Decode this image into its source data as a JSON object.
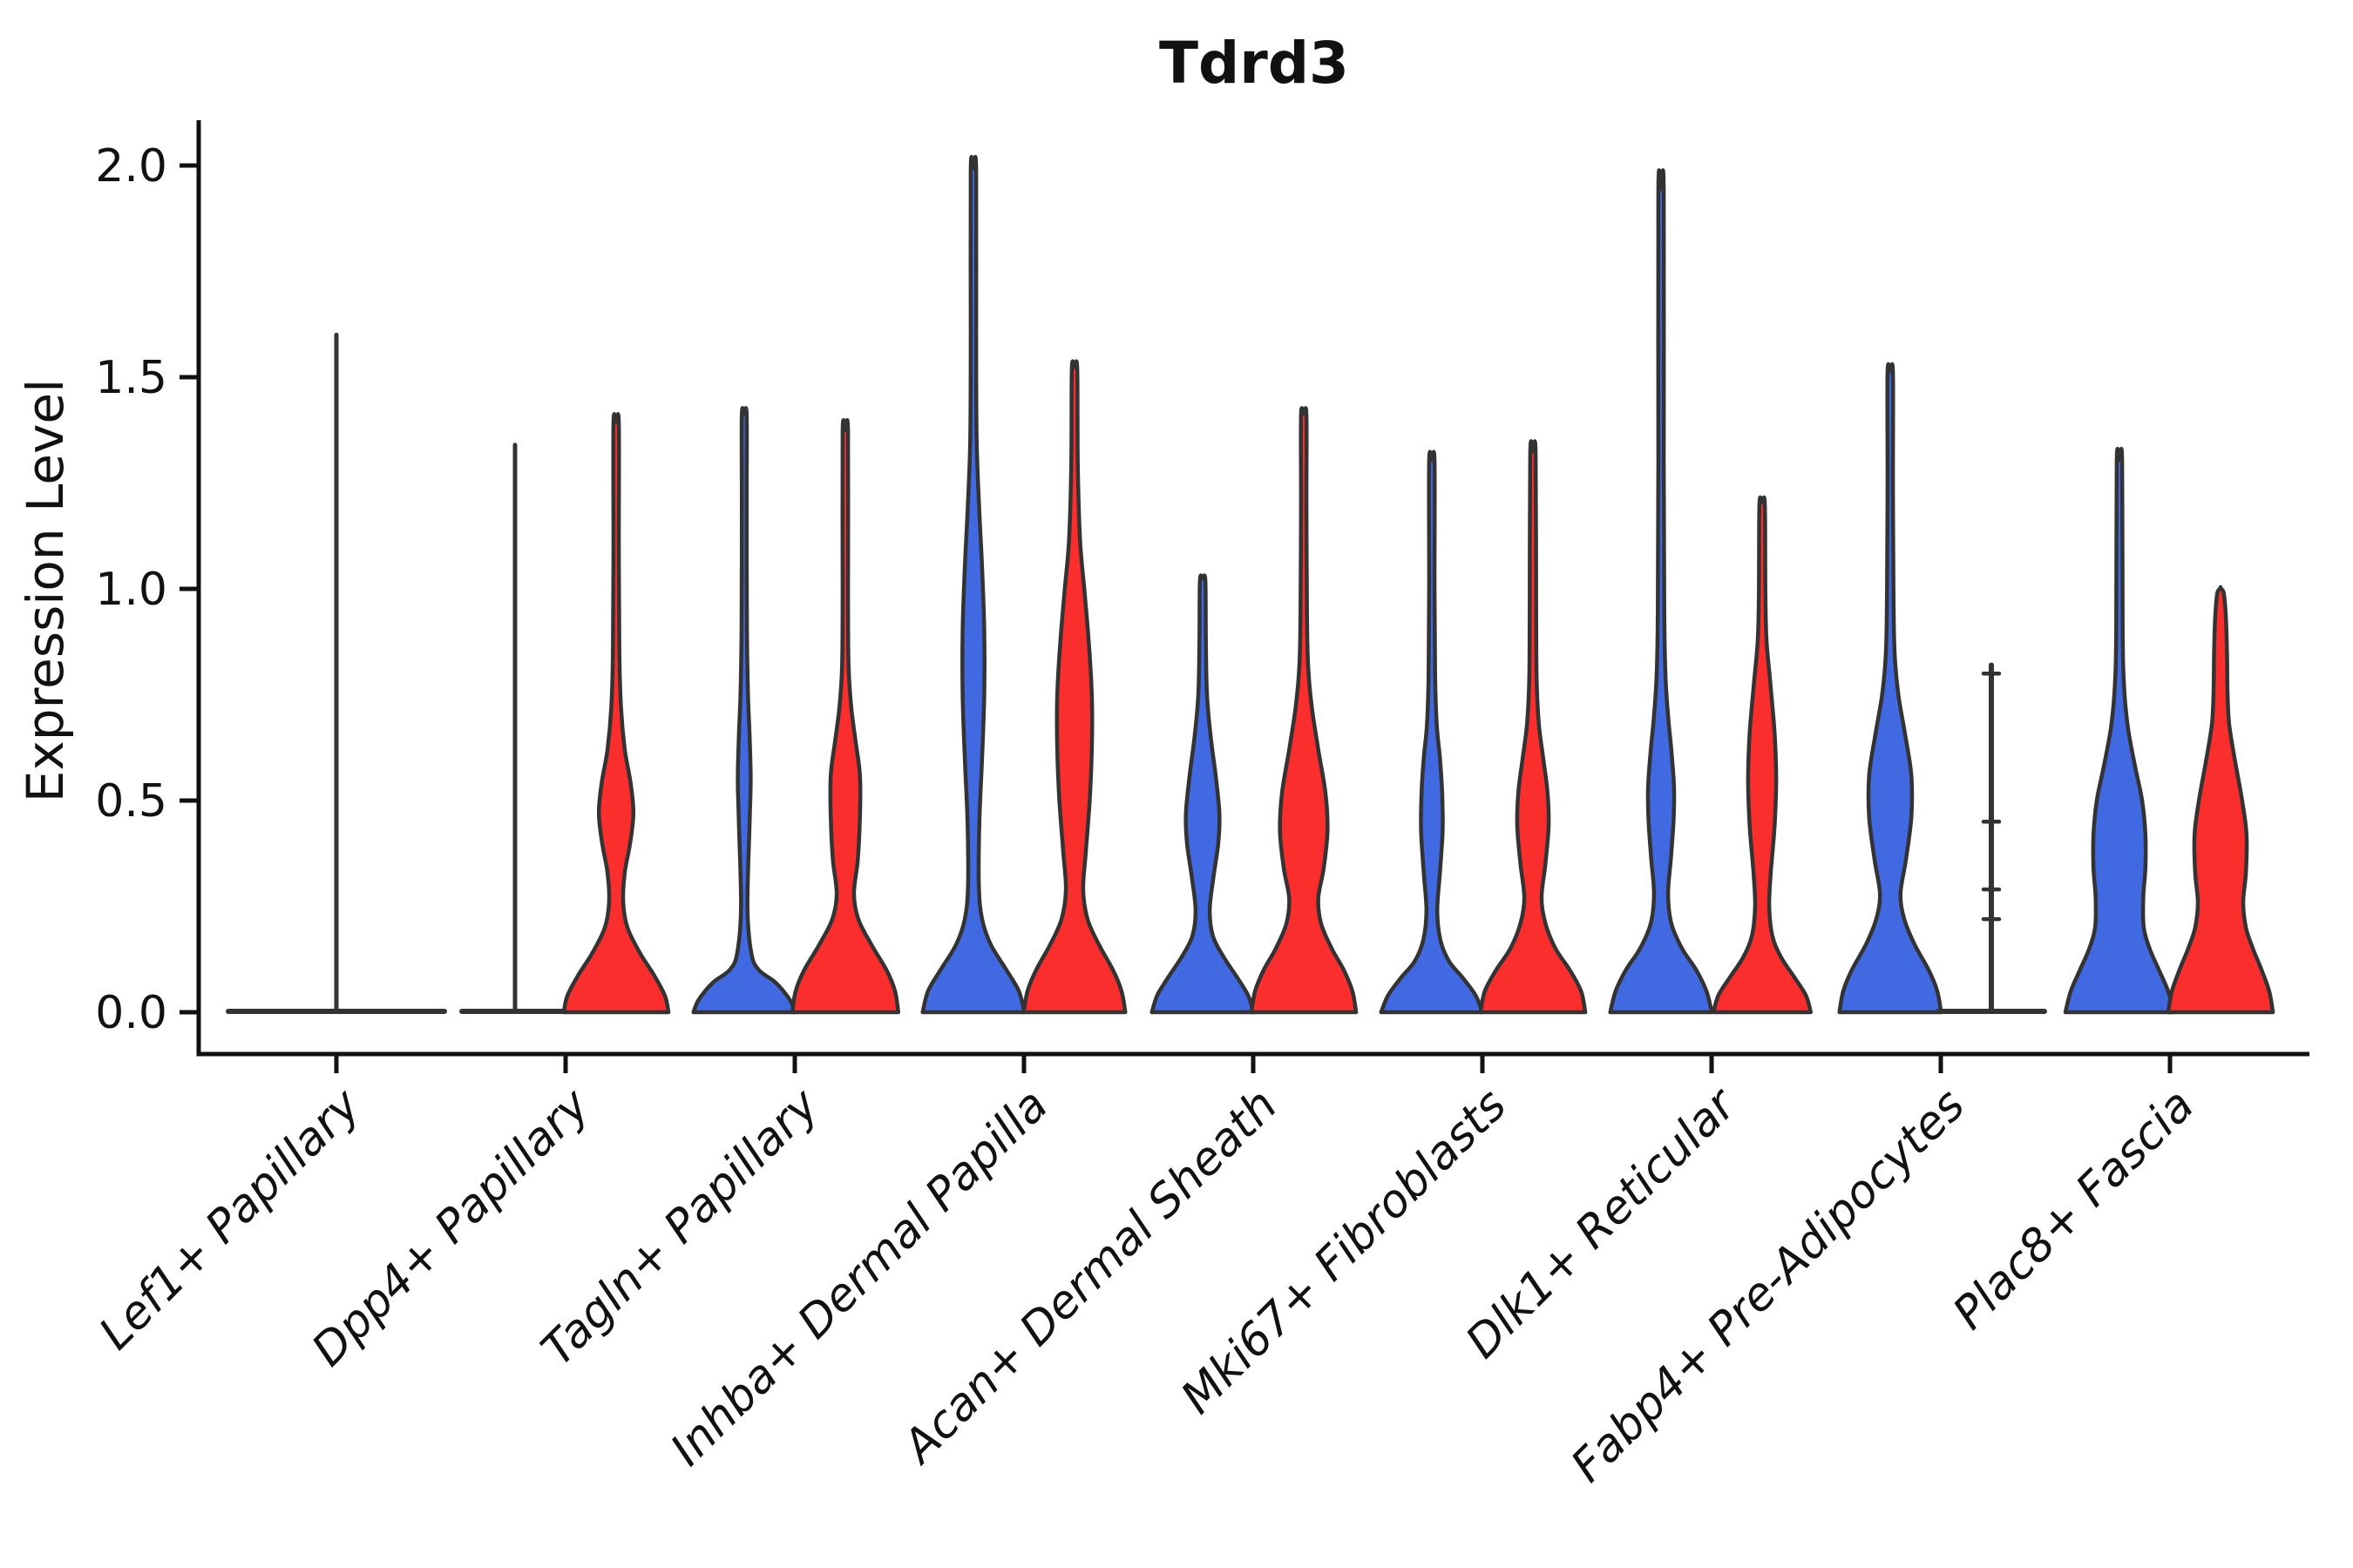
{
  "chart_data": {
    "type": "violin",
    "title": "Tdrd3",
    "xlabel": "",
    "ylabel": "Expression Level",
    "grid": false,
    "legend": "none",
    "ylim": [
      0,
      2.05
    ],
    "y_ticks": [
      {
        "label": "0.0",
        "value": 0.0
      },
      {
        "label": "0.5",
        "value": 0.5
      },
      {
        "label": "1.0",
        "value": 1.0
      },
      {
        "label": "1.5",
        "value": 1.5
      },
      {
        "label": "2.0",
        "value": 2.0
      }
    ],
    "categories": [
      "Lef1+ Papillary",
      "Dpp4+ Papillary",
      "Tagln+ Papillary",
      "Inhba+ Dermal Papilla",
      "Acan+ Dermal Sheath",
      "Mki67+ Fibroblasts",
      "Dlk1+ Reticular",
      "Fabp4+ Pre-Adipocytes",
      "Plac8+ Fascia"
    ],
    "colors": {
      "series1": "#4169E1",
      "series2": "#FB2E2E",
      "outline": "#333333",
      "axis": "#111111"
    },
    "series": [
      {
        "name": "split-condition-1-blue",
        "color": "#4169E1",
        "side": "left",
        "violins": [
          {
            "category": "Lef1+ Papillary",
            "shape": "flat-spike",
            "full_width": true,
            "max": 1.6,
            "profile": []
          },
          {
            "category": "Dpp4+ Papillary",
            "shape": "flat-spike",
            "full_width": false,
            "max": 1.34,
            "profile": []
          },
          {
            "category": "Tagln+ Papillary",
            "shape": "violin",
            "max": 1.41,
            "profile": [
              [
                0,
                0.94
              ],
              [
                0.03,
                0.84
              ],
              [
                0.07,
                0.58
              ],
              [
                0.1,
                0.27
              ],
              [
                0.14,
                0.13
              ],
              [
                0.25,
                0.06
              ],
              [
                0.45,
                0.1
              ],
              [
                0.55,
                0.12
              ],
              [
                0.65,
                0.1
              ],
              [
                0.75,
                0.07
              ],
              [
                0.9,
                0.05
              ],
              [
                1.2,
                0.045
              ],
              [
                1.41,
                0.045
              ]
            ]
          },
          {
            "category": "Inhba+ Dermal Papilla",
            "shape": "violin",
            "max": 1.99,
            "profile": [
              [
                0,
                0.94
              ],
              [
                0.05,
                0.84
              ],
              [
                0.1,
                0.61
              ],
              [
                0.16,
                0.32
              ],
              [
                0.22,
                0.16
              ],
              [
                0.3,
                0.1
              ],
              [
                0.45,
                0.11
              ],
              [
                0.6,
                0.16
              ],
              [
                0.75,
                0.2
              ],
              [
                0.9,
                0.2
              ],
              [
                1.05,
                0.16
              ],
              [
                1.18,
                0.11
              ],
              [
                1.35,
                0.06
              ],
              [
                1.6,
                0.05
              ],
              [
                1.99,
                0.05
              ]
            ]
          },
          {
            "category": "Acan+ Dermal Sheath",
            "shape": "violin",
            "max": 1.02,
            "profile": [
              [
                0,
                0.94
              ],
              [
                0.04,
                0.84
              ],
              [
                0.08,
                0.65
              ],
              [
                0.13,
                0.39
              ],
              [
                0.18,
                0.19
              ],
              [
                0.24,
                0.13
              ],
              [
                0.31,
                0.19
              ],
              [
                0.4,
                0.29
              ],
              [
                0.47,
                0.31
              ],
              [
                0.56,
                0.24
              ],
              [
                0.65,
                0.15
              ],
              [
                0.75,
                0.08
              ],
              [
                0.88,
                0.06
              ],
              [
                1.02,
                0.05
              ]
            ]
          },
          {
            "category": "Mki67+ Fibroblasts",
            "shape": "violin",
            "max": 1.3,
            "profile": [
              [
                0,
                0.94
              ],
              [
                0.04,
                0.81
              ],
              [
                0.08,
                0.58
              ],
              [
                0.12,
                0.32
              ],
              [
                0.17,
                0.16
              ],
              [
                0.24,
                0.1
              ],
              [
                0.33,
                0.15
              ],
              [
                0.43,
                0.2
              ],
              [
                0.52,
                0.19
              ],
              [
                0.6,
                0.15
              ],
              [
                0.68,
                0.09
              ],
              [
                0.8,
                0.06
              ],
              [
                1.0,
                0.05
              ],
              [
                1.3,
                0.05
              ]
            ]
          },
          {
            "category": "Dlk1+ Reticular",
            "shape": "violin",
            "max": 1.94,
            "profile": [
              [
                0,
                0.94
              ],
              [
                0.05,
                0.84
              ],
              [
                0.1,
                0.65
              ],
              [
                0.15,
                0.39
              ],
              [
                0.21,
                0.19
              ],
              [
                0.28,
                0.13
              ],
              [
                0.36,
                0.18
              ],
              [
                0.45,
                0.23
              ],
              [
                0.53,
                0.24
              ],
              [
                0.62,
                0.19
              ],
              [
                0.7,
                0.13
              ],
              [
                0.8,
                0.08
              ],
              [
                0.95,
                0.06
              ],
              [
                1.3,
                0.05
              ],
              [
                1.94,
                0.05
              ]
            ]
          },
          {
            "category": "Fabp4+ Pre-Adipocytes",
            "shape": "violin",
            "max": 1.51,
            "profile": [
              [
                0,
                0.94
              ],
              [
                0.05,
                0.87
              ],
              [
                0.1,
                0.71
              ],
              [
                0.16,
                0.45
              ],
              [
                0.22,
                0.26
              ],
              [
                0.28,
                0.19
              ],
              [
                0.36,
                0.29
              ],
              [
                0.46,
                0.39
              ],
              [
                0.56,
                0.39
              ],
              [
                0.66,
                0.27
              ],
              [
                0.75,
                0.15
              ],
              [
                0.85,
                0.08
              ],
              [
                1.0,
                0.06
              ],
              [
                1.25,
                0.05
              ],
              [
                1.51,
                0.05
              ]
            ]
          },
          {
            "category": "Plac8+ Fascia",
            "shape": "violin",
            "max": 1.3,
            "profile": [
              [
                0,
                1.0
              ],
              [
                0.05,
                0.9
              ],
              [
                0.1,
                0.73
              ],
              [
                0.15,
                0.56
              ],
              [
                0.2,
                0.45
              ],
              [
                0.27,
                0.44
              ],
              [
                0.34,
                0.48
              ],
              [
                0.42,
                0.48
              ],
              [
                0.5,
                0.42
              ],
              [
                0.58,
                0.29
              ],
              [
                0.67,
                0.16
              ],
              [
                0.76,
                0.09
              ],
              [
                0.9,
                0.06
              ],
              [
                1.3,
                0.05
              ]
            ]
          }
        ]
      },
      {
        "name": "split-condition-2-red",
        "color": "#FB2E2E",
        "side": "right",
        "violins": [
          {
            "category": "Lef1+ Papillary",
            "shape": "none",
            "max": 0.0,
            "profile": []
          },
          {
            "category": "Dpp4+ Papillary",
            "shape": "violin",
            "max": 1.39,
            "profile": [
              [
                0,
                0.97
              ],
              [
                0.04,
                0.9
              ],
              [
                0.09,
                0.69
              ],
              [
                0.14,
                0.44
              ],
              [
                0.2,
                0.21
              ],
              [
                0.26,
                0.13
              ],
              [
                0.33,
                0.16
              ],
              [
                0.4,
                0.26
              ],
              [
                0.47,
                0.32
              ],
              [
                0.54,
                0.27
              ],
              [
                0.62,
                0.16
              ],
              [
                0.72,
                0.09
              ],
              [
                0.85,
                0.06
              ],
              [
                1.1,
                0.05
              ],
              [
                1.39,
                0.05
              ]
            ]
          },
          {
            "category": "Tagln+ Papillary",
            "shape": "violin",
            "max": 1.37,
            "profile": [
              [
                0,
                0.98
              ],
              [
                0.05,
                0.92
              ],
              [
                0.1,
                0.76
              ],
              [
                0.16,
                0.48
              ],
              [
                0.22,
                0.24
              ],
              [
                0.28,
                0.16
              ],
              [
                0.36,
                0.23
              ],
              [
                0.46,
                0.27
              ],
              [
                0.56,
                0.27
              ],
              [
                0.64,
                0.19
              ],
              [
                0.72,
                0.11
              ],
              [
                0.82,
                0.06
              ],
              [
                1.0,
                0.05
              ],
              [
                1.37,
                0.05
              ]
            ]
          },
          {
            "category": "Inhba+ Dermal Papilla",
            "shape": "violin",
            "max": 1.52,
            "profile": [
              [
                0,
                0.94
              ],
              [
                0.05,
                0.87
              ],
              [
                0.1,
                0.71
              ],
              [
                0.16,
                0.45
              ],
              [
                0.22,
                0.24
              ],
              [
                0.29,
                0.16
              ],
              [
                0.38,
                0.21
              ],
              [
                0.5,
                0.28
              ],
              [
                0.62,
                0.32
              ],
              [
                0.75,
                0.32
              ],
              [
                0.88,
                0.26
              ],
              [
                1.0,
                0.18
              ],
              [
                1.12,
                0.1
              ],
              [
                1.3,
                0.06
              ],
              [
                1.52,
                0.05
              ]
            ]
          },
          {
            "category": "Acan+ Dermal Sheath",
            "shape": "violin",
            "max": 1.41,
            "profile": [
              [
                0,
                0.97
              ],
              [
                0.05,
                0.9
              ],
              [
                0.1,
                0.74
              ],
              [
                0.15,
                0.52
              ],
              [
                0.21,
                0.32
              ],
              [
                0.27,
                0.27
              ],
              [
                0.34,
                0.37
              ],
              [
                0.43,
                0.44
              ],
              [
                0.52,
                0.4
              ],
              [
                0.62,
                0.27
              ],
              [
                0.72,
                0.15
              ],
              [
                0.82,
                0.08
              ],
              [
                0.95,
                0.06
              ],
              [
                1.2,
                0.05
              ],
              [
                1.41,
                0.05
              ]
            ]
          },
          {
            "category": "Mki67+ Fibroblasts",
            "shape": "violin",
            "max": 1.32,
            "profile": [
              [
                0,
                0.97
              ],
              [
                0.05,
                0.89
              ],
              [
                0.1,
                0.68
              ],
              [
                0.15,
                0.42
              ],
              [
                0.21,
                0.23
              ],
              [
                0.27,
                0.16
              ],
              [
                0.35,
                0.23
              ],
              [
                0.44,
                0.29
              ],
              [
                0.52,
                0.27
              ],
              [
                0.6,
                0.19
              ],
              [
                0.68,
                0.11
              ],
              [
                0.78,
                0.07
              ],
              [
                0.95,
                0.06
              ],
              [
                1.32,
                0.05
              ]
            ]
          },
          {
            "category": "Dlk1+ Reticular",
            "shape": "violin",
            "max": 1.2,
            "profile": [
              [
                0,
                0.9
              ],
              [
                0.04,
                0.81
              ],
              [
                0.08,
                0.61
              ],
              [
                0.13,
                0.35
              ],
              [
                0.18,
                0.19
              ],
              [
                0.25,
                0.13
              ],
              [
                0.33,
                0.16
              ],
              [
                0.44,
                0.23
              ],
              [
                0.55,
                0.26
              ],
              [
                0.66,
                0.23
              ],
              [
                0.78,
                0.15
              ],
              [
                0.88,
                0.08
              ],
              [
                1.0,
                0.06
              ],
              [
                1.2,
                0.05
              ]
            ]
          },
          {
            "category": "Fabp4+ Pre-Adipocytes",
            "shape": "whisker",
            "max": 0.82,
            "marks": [
              0.8,
              0.45,
              0.29,
              0.22
            ],
            "profile": []
          },
          {
            "category": "Plac8+ Fascia",
            "shape": "violin",
            "max": 1.0,
            "profile": [
              [
                0,
                0.97
              ],
              [
                0.05,
                0.9
              ],
              [
                0.1,
                0.76
              ],
              [
                0.15,
                0.6
              ],
              [
                0.2,
                0.47
              ],
              [
                0.26,
                0.42
              ],
              [
                0.33,
                0.47
              ],
              [
                0.42,
                0.48
              ],
              [
                0.5,
                0.4
              ],
              [
                0.6,
                0.26
              ],
              [
                0.68,
                0.16
              ],
              [
                0.75,
                0.13
              ],
              [
                0.85,
                0.12
              ],
              [
                0.93,
                0.1
              ],
              [
                0.99,
                0.06
              ],
              [
                1.0,
                0.0
              ]
            ]
          }
        ]
      }
    ]
  }
}
